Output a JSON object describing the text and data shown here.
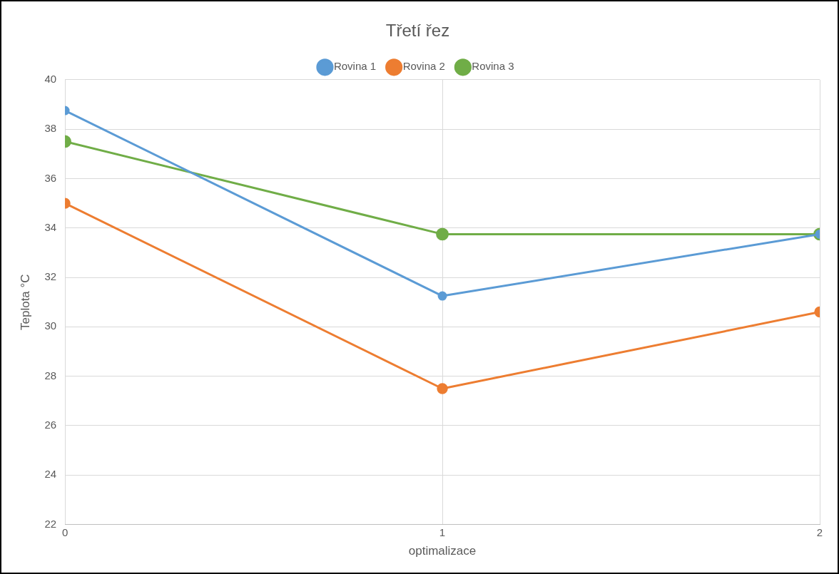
{
  "chart_data": {
    "type": "line",
    "title": "Třetí řez",
    "xlabel": "optimalizace",
    "ylabel": "Teplota °C",
    "x": [
      0,
      1,
      2
    ],
    "series": [
      {
        "name": "Rovina 1",
        "color": "#5b9bd5",
        "values": [
          38.75,
          31.25,
          33.75
        ]
      },
      {
        "name": "Rovina 2",
        "color": "#ed7d31",
        "values": [
          35,
          27.5,
          30.6
        ]
      },
      {
        "name": "Rovina 3",
        "color": "#70ad47",
        "values": [
          37.5,
          33.75,
          33.75
        ]
      }
    ],
    "xlim": [
      0,
      2
    ],
    "xticks": [
      0,
      1,
      2
    ],
    "ylim": [
      22,
      40
    ],
    "yticks": [
      22,
      24,
      26,
      28,
      30,
      32,
      34,
      36,
      38,
      40
    ],
    "grid": true,
    "legend": "top",
    "marker": "circle",
    "line_style": "solid"
  }
}
